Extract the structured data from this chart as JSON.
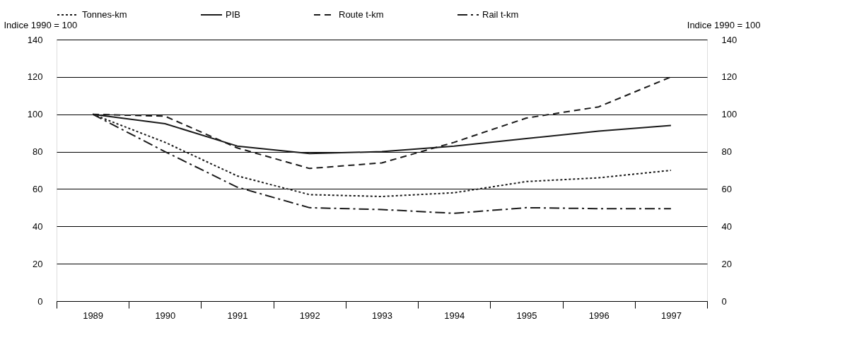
{
  "chart_data": {
    "type": "line",
    "categories": [
      "1989",
      "1990",
      "1991",
      "1992",
      "1993",
      "1994",
      "1995",
      "1996",
      "1997"
    ],
    "ylabel": "Indice 1990 = 100",
    "y2label": "Indice 1990 = 100",
    "ylim": [
      0,
      140
    ],
    "yticks": [
      0,
      20,
      40,
      60,
      80,
      100,
      120,
      140
    ],
    "y2lim": [
      0,
      140
    ],
    "y2ticks": [
      0,
      20,
      40,
      60,
      80,
      100,
      120,
      140
    ],
    "grid": "y",
    "legend": "top",
    "marker": "none",
    "series": [
      {
        "name": "Tonnes-km",
        "color": "#1a1a1a",
        "line_style": "dotted",
        "values": [
          100,
          85,
          67,
          57,
          56,
          58,
          64,
          66,
          70
        ]
      },
      {
        "name": "PIB",
        "color": "#1a1a1a",
        "line_style": "solid",
        "values": [
          100,
          95,
          83,
          79,
          80,
          83,
          87,
          91,
          94
        ]
      },
      {
        "name": "Route t-km",
        "color": "#1a1a1a",
        "line_style": "dashed",
        "values": [
          100,
          99,
          82,
          71,
          74,
          85,
          98,
          104,
          120
        ]
      },
      {
        "name": "Rail t-km",
        "color": "#1a1a1a",
        "line_style": "dashdot",
        "values": [
          100,
          80,
          61,
          50,
          49,
          47,
          50,
          49.5,
          49.5
        ]
      }
    ]
  }
}
